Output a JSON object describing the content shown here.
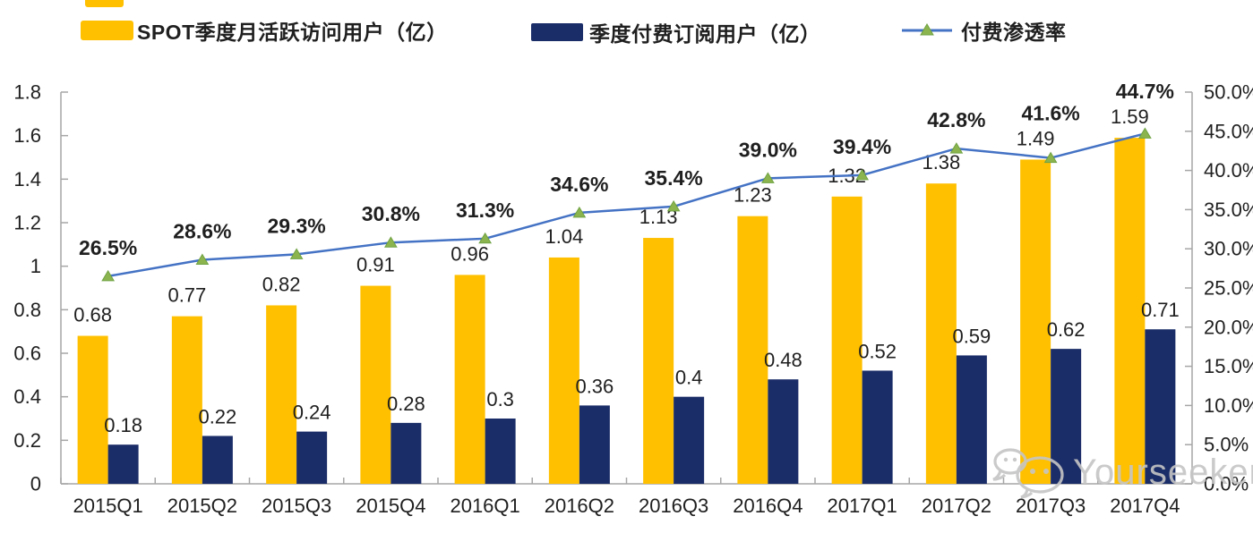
{
  "legend": {
    "items": [
      {
        "label": "SPOT季度月活跃访问用户（亿）",
        "swatch": "bar",
        "color": "#FFC000"
      },
      {
        "label": "季度付费订阅用户（亿）",
        "swatch": "bar",
        "color": "#1B2D68"
      },
      {
        "label": "付费渗透率",
        "swatch": "line",
        "color": "#4472C4",
        "marker_color": "#8CB44E"
      }
    ]
  },
  "watermark": {
    "text": "Yourseeker",
    "icon": "chat-bubbles-icon",
    "color": "#c5c5c5"
  },
  "colors": {
    "bar_mau": "#FFC000",
    "bar_subs": "#1B2D68",
    "line": "#4472C4",
    "marker_fill": "#8CB44E",
    "marker_stroke": "#6FA243",
    "axis": "#A6A6A6",
    "text": "#1F1F1F"
  },
  "chart_data": {
    "type": "bar",
    "subtype": "grouped-bars-with-line",
    "categories": [
      "2015Q1",
      "2015Q2",
      "2015Q3",
      "2015Q4",
      "2016Q1",
      "2016Q2",
      "2016Q3",
      "2016Q4",
      "2017Q1",
      "2017Q2",
      "2017Q3",
      "2017Q4"
    ],
    "series": [
      {
        "name": "SPOT季度月活跃访问用户（亿）",
        "type": "bar",
        "axis": "left",
        "color": "#FFC000",
        "values": [
          0.68,
          0.77,
          0.82,
          0.91,
          0.96,
          1.04,
          1.13,
          1.23,
          1.32,
          1.38,
          1.49,
          1.59
        ]
      },
      {
        "name": "季度付费订阅用户（亿）",
        "type": "bar",
        "axis": "left",
        "color": "#1B2D68",
        "values": [
          0.18,
          0.22,
          0.24,
          0.28,
          0.3,
          0.36,
          0.4,
          0.48,
          0.52,
          0.59,
          0.62,
          0.71
        ]
      },
      {
        "name": "付费渗透率",
        "type": "line",
        "axis": "right",
        "color": "#4472C4",
        "marker": "triangle",
        "marker_color": "#8CB44E",
        "values": [
          26.5,
          28.6,
          29.3,
          30.8,
          31.3,
          34.6,
          35.4,
          39.0,
          39.4,
          42.8,
          41.6,
          44.7
        ]
      }
    ],
    "left_axis": {
      "min": 0,
      "max": 1.8,
      "step": 0.2,
      "ticks": [
        "0",
        "0.2",
        "0.4",
        "0.6",
        "0.8",
        "1",
        "1.2",
        "1.4",
        "1.6",
        "1.8"
      ]
    },
    "right_axis": {
      "min": 0,
      "max": 50,
      "step": 5,
      "ticks": [
        "0.0%",
        "5.0%",
        "10.0%",
        "15.0%",
        "20.0%",
        "25.0%",
        "30.0%",
        "35.0%",
        "40.0%",
        "45.0%",
        "50.0%"
      ]
    },
    "grid": false,
    "legend_position": "top",
    "data_labels": true
  }
}
